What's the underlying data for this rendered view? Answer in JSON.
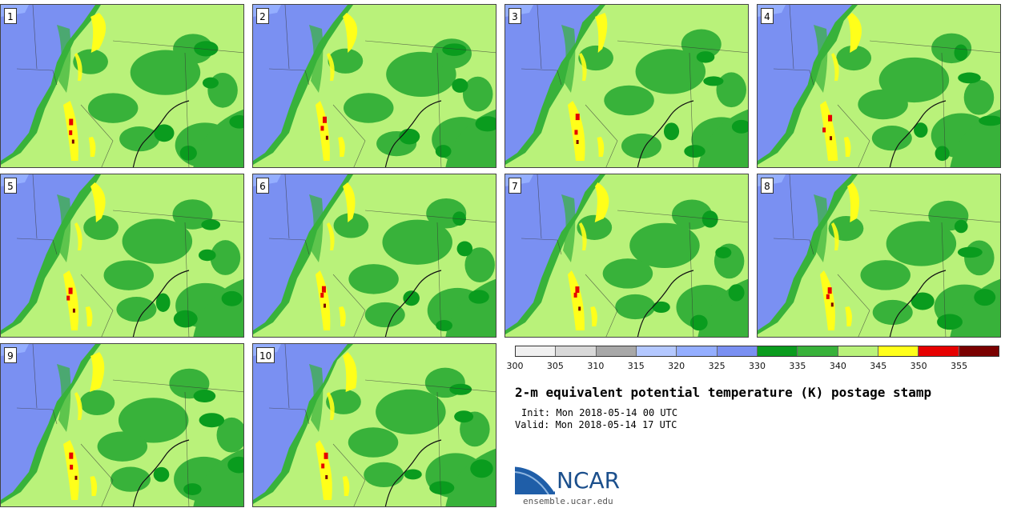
{
  "panels": [
    {
      "label": "1"
    },
    {
      "label": "2"
    },
    {
      "label": "3"
    },
    {
      "label": "4"
    },
    {
      "label": "5"
    },
    {
      "label": "6"
    },
    {
      "label": "7"
    },
    {
      "label": "8"
    },
    {
      "label": "9"
    },
    {
      "label": "10"
    }
  ],
  "colorbar": {
    "colors": [
      "#f0f0f0",
      "#d8d8d8",
      "#a8a8a8",
      "#b4c8ff",
      "#94aeff",
      "#7a90f2",
      "#0a9c1e",
      "#38b23a",
      "#b9f27a",
      "#ffff1a",
      "#e60000",
      "#7a0000"
    ],
    "ticks": [
      "300",
      "305",
      "310",
      "315",
      "320",
      "325",
      "330",
      "335",
      "340",
      "345",
      "350",
      "355"
    ]
  },
  "title": "2-m equivalent potential temperature (K) postage stamp",
  "init": "Init: Mon 2018-05-14 00 UTC",
  "valid": "Valid: Mon 2018-05-14 17 UTC",
  "logo": {
    "text": "NCAR",
    "url": "ensemble.ucar.edu"
  }
}
